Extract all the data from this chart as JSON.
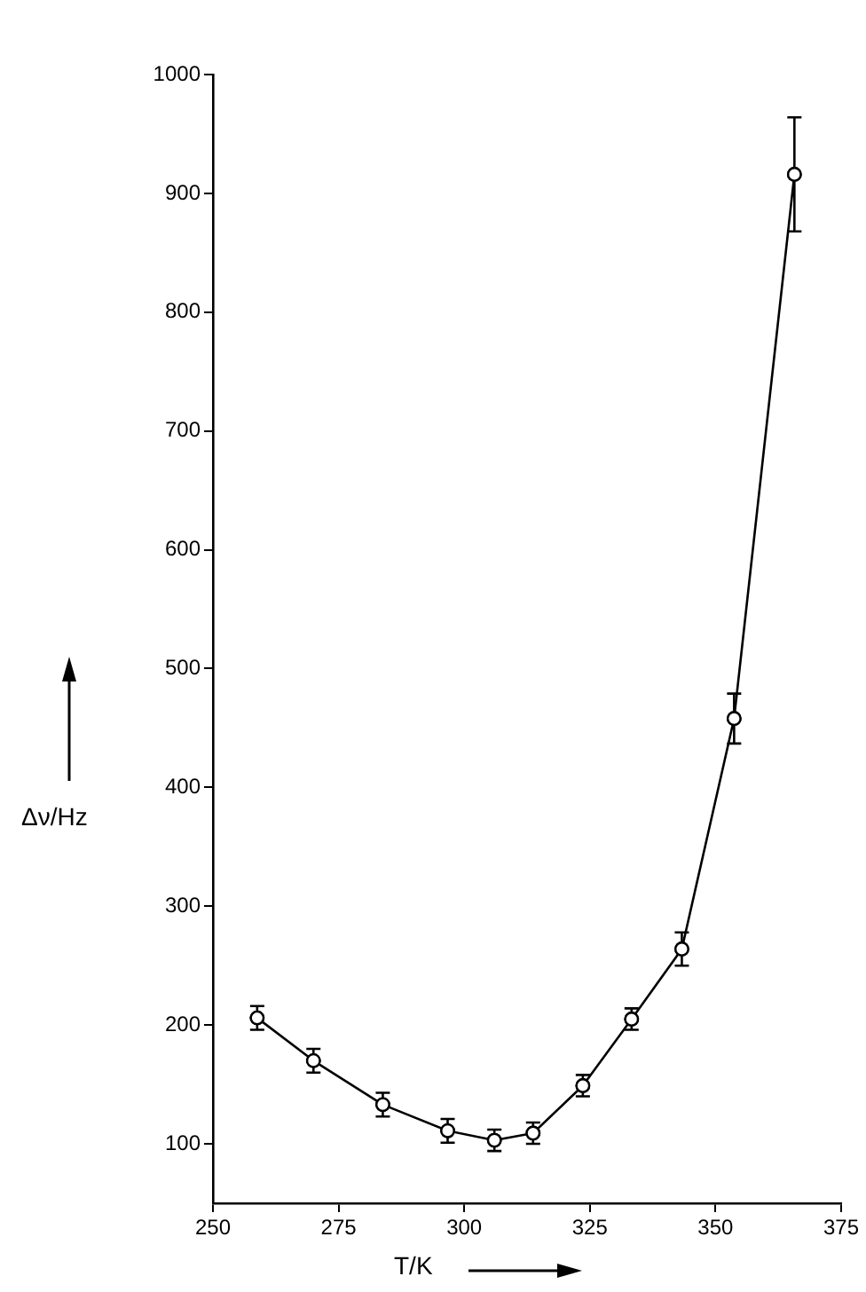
{
  "chart_data": {
    "type": "line",
    "xlabel": "T/K",
    "ylabel": "Δν/Hz",
    "x": [
      258.8,
      270,
      283.8,
      296.7,
      306,
      313.7,
      323.6,
      333.3,
      343.3,
      353.7,
      365.7
    ],
    "series": [
      {
        "color": "#000000",
        "values": [
          206,
          170,
          133,
          111,
          103,
          109,
          149,
          205,
          264,
          458,
          916
        ],
        "errors": [
          10,
          10,
          10,
          10,
          9,
          9,
          9,
          9,
          14,
          21,
          48
        ]
      }
    ],
    "xlim": [
      250,
      375
    ],
    "xticks": [
      250,
      275,
      300,
      325,
      350,
      375
    ],
    "ylim": [
      50,
      1000
    ],
    "yticks": [
      100,
      200,
      300,
      400,
      500,
      600,
      700,
      800,
      900,
      1000
    ],
    "grid": false,
    "legend": false,
    "marker": "circle",
    "line_style": "solid"
  }
}
